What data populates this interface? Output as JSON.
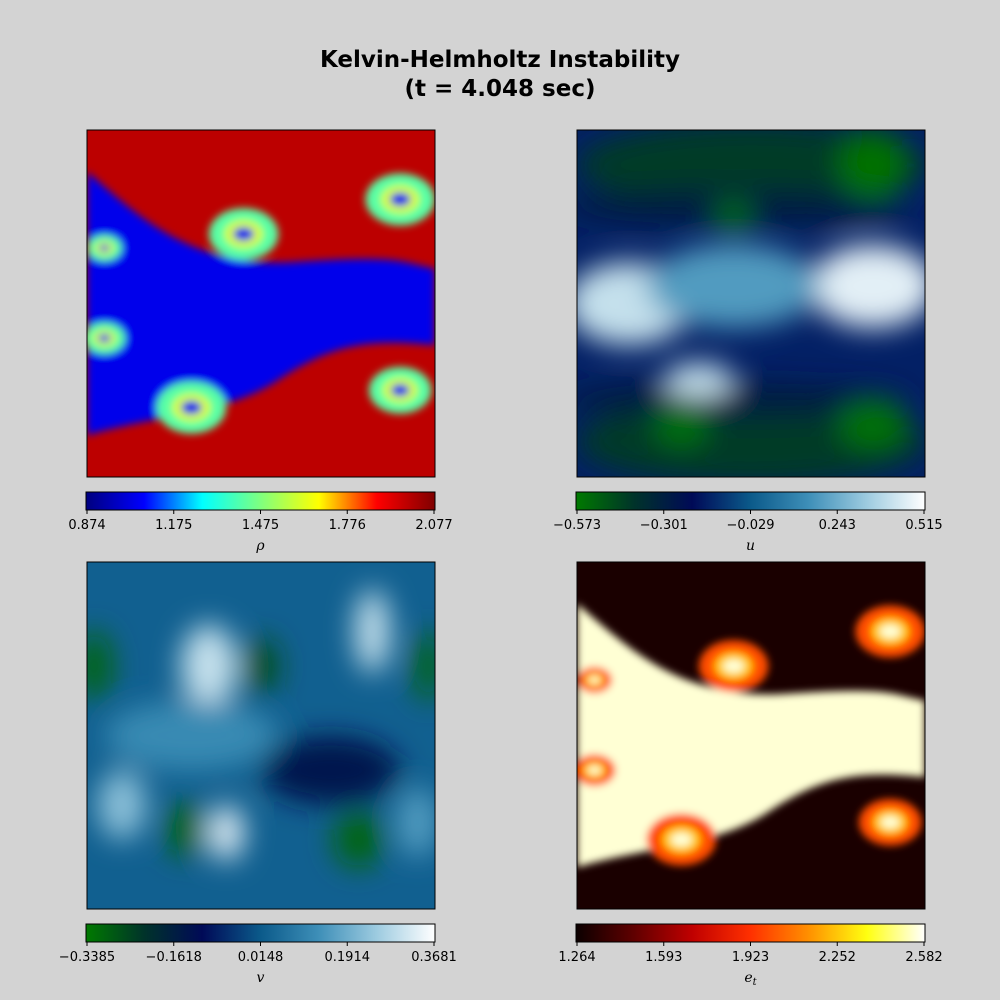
{
  "title": {
    "line1": "Kelvin-Helmholtz Instability",
    "line2": "(t = 4.048 sec)"
  },
  "chart_data": [
    {
      "type": "heatmap",
      "field": "density",
      "colormap": "jet",
      "colorbar_label": "ρ",
      "colorbar_ticks": [
        "0.874",
        "1.175",
        "1.475",
        "1.776",
        "2.077"
      ],
      "vmin": 0.874,
      "vmax": 2.077,
      "colors": [
        "#00007f",
        "#0000ff",
        "#00ffff",
        "#7fff7f",
        "#ffff00",
        "#ff0000",
        "#7f0000"
      ]
    },
    {
      "type": "heatmap",
      "field": "u",
      "colormap": "ocean-like",
      "colorbar_label": "u",
      "colorbar_ticks": [
        "−0.573",
        "−0.301",
        "−0.029",
        "0.243",
        "0.515"
      ],
      "vmin": -0.573,
      "vmax": 0.515,
      "colors": [
        "#007a00",
        "#00332a",
        "#000a57",
        "#0b5a8a",
        "#3e8fb8",
        "#9dcbe0",
        "#ffffff"
      ]
    },
    {
      "type": "heatmap",
      "field": "v",
      "colormap": "ocean-like",
      "colorbar_label": "v",
      "colorbar_ticks": [
        "−0.3385",
        "−0.1618",
        "0.0148",
        "0.1914",
        "0.3681"
      ],
      "vmin": -0.3385,
      "vmax": 0.3681,
      "colors": [
        "#007a00",
        "#00332a",
        "#000a57",
        "#0b5a8a",
        "#3e8fb8",
        "#9dcbe0",
        "#ffffff"
      ]
    },
    {
      "type": "heatmap",
      "field": "e_t",
      "colormap": "hot",
      "colorbar_label": "e",
      "colorbar_label_sub": "t",
      "colorbar_ticks": [
        "1.264",
        "1.593",
        "1.923",
        "2.252",
        "2.582"
      ],
      "vmin": 1.264,
      "vmax": 2.582,
      "colors": [
        "#0b0000",
        "#600000",
        "#c00000",
        "#ff3000",
        "#ff9000",
        "#ffff10",
        "#ffffff"
      ]
    }
  ]
}
